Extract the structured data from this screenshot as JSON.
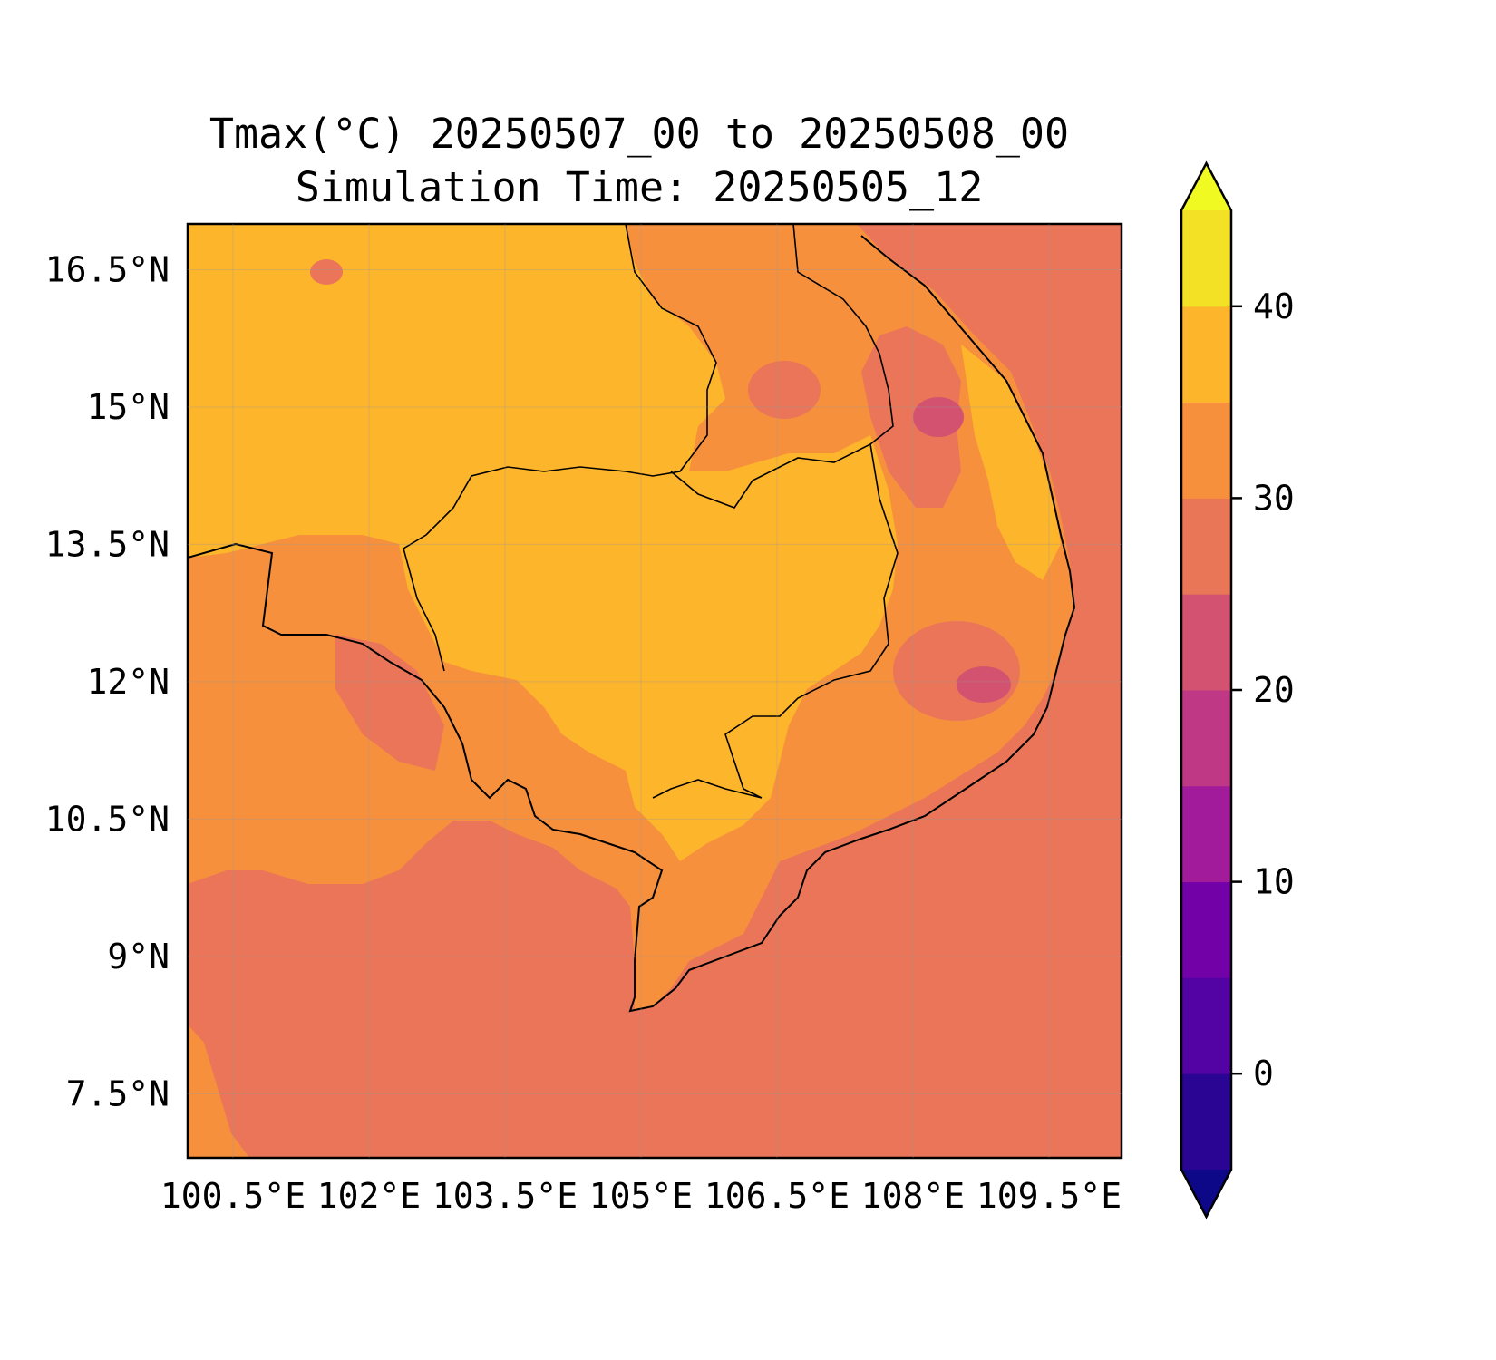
{
  "title": {
    "line1": "Tmax(°C) 20250507_00 to 20250508_00",
    "line2": "Simulation Time: 20250505_12"
  },
  "map": {
    "lon_range": [
      100.0,
      110.3
    ],
    "lat_range": [
      6.8,
      17.0
    ],
    "lon_ticks": [
      {
        "value": 100.5,
        "label": "100.5°E"
      },
      {
        "value": 102.0,
        "label": "102°E"
      },
      {
        "value": 103.5,
        "label": "103.5°E"
      },
      {
        "value": 105.0,
        "label": "105°E"
      },
      {
        "value": 106.5,
        "label": "106.5°E"
      },
      {
        "value": 108.0,
        "label": "108°E"
      },
      {
        "value": 109.5,
        "label": "109.5°E"
      }
    ],
    "lat_ticks": [
      {
        "value": 16.5,
        "label": "16.5°N"
      },
      {
        "value": 15.0,
        "label": "15°N"
      },
      {
        "value": 13.5,
        "label": "13.5°N"
      },
      {
        "value": 12.0,
        "label": "12°N"
      },
      {
        "value": 10.5,
        "label": "10.5°N"
      },
      {
        "value": 9.0,
        "label": "9°N"
      },
      {
        "value": 7.5,
        "label": "7.5°N"
      }
    ],
    "field": "Tmax",
    "units": "°C",
    "dominant_colors": {
      "sea_25_30": "#ea7558",
      "land_30_35": "#f6903d",
      "land_35_40": "#fdb52c",
      "highland_20_25": "#d35270"
    }
  },
  "colorbar": {
    "levels": [
      -5,
      0,
      5,
      10,
      15,
      20,
      25,
      30,
      35,
      40,
      45
    ],
    "colors": [
      "#2a0593",
      "#5302a3",
      "#7201a8",
      "#a11b9b",
      "#be3885",
      "#d35171",
      "#ea7658",
      "#f6903d",
      "#fdb62b",
      "#f3e125"
    ],
    "under_color": "#0d0887",
    "over_color": "#f0f921",
    "tick_values": [
      0,
      10,
      20,
      30,
      40
    ],
    "tick_labels": [
      "0",
      "10",
      "20",
      "30",
      "40"
    ],
    "extend": "both"
  }
}
